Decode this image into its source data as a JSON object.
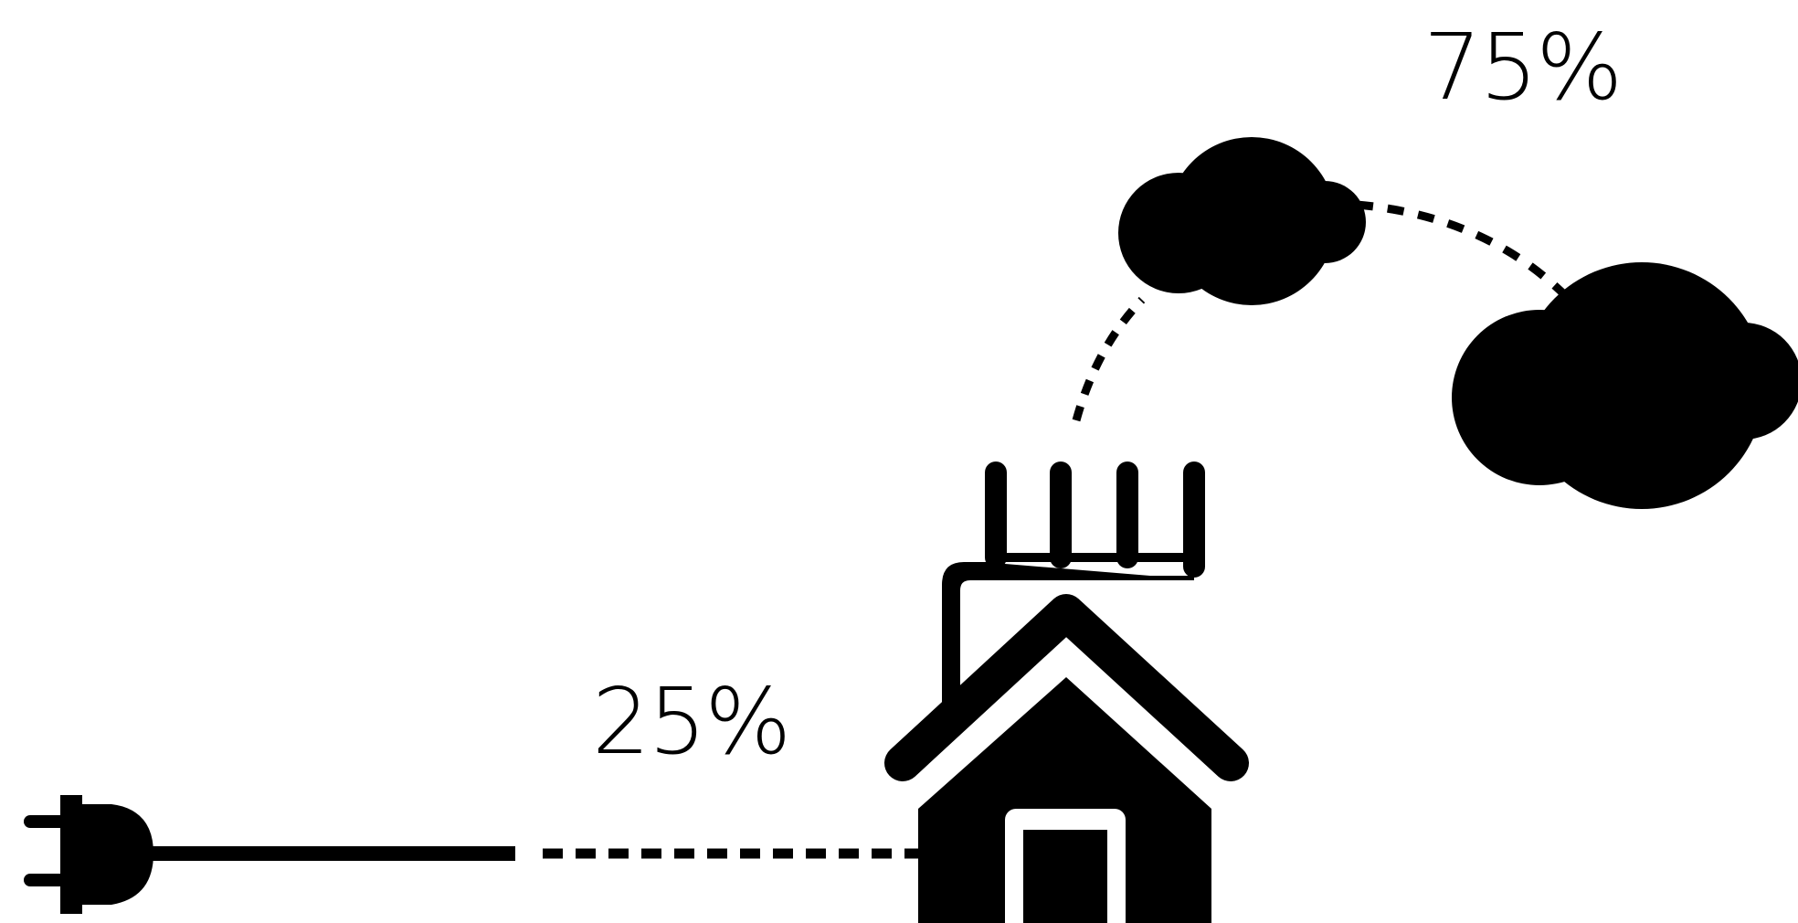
{
  "labels": {
    "grid_share": "25%",
    "emissions_share": "75%"
  },
  "icons": {
    "plug": "plug-icon",
    "house": "house-icon",
    "chimney": "chimney-icon",
    "cloud_small": "cloud-icon",
    "cloud_large": "cloud-icon"
  },
  "colors": {
    "ink": "#000000",
    "background": "#ffffff"
  }
}
